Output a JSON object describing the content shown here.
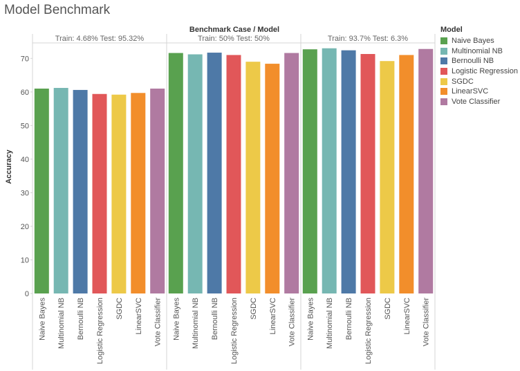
{
  "header": {
    "title": "Model Benchmark"
  },
  "chart_data": {
    "type": "bar",
    "title": "Model Benchmark",
    "column_header": "Benchmark Case / Model",
    "ylabel": "Accuracy",
    "ylim": [
      0,
      74.6
    ],
    "yticks": [
      0,
      10,
      20,
      30,
      40,
      50,
      60,
      70
    ],
    "grid": false,
    "legend_title": "Model",
    "legend_position": "right",
    "categories": [
      "Naive Bayes",
      "Multinomial NB",
      "Bernoulli NB",
      "Logistic Regression",
      "SGDC",
      "LinearSVC",
      "Vote Classifier"
    ],
    "colors": [
      "#59a14f",
      "#76b7b2",
      "#4e79a7",
      "#e15759",
      "#edc948",
      "#f28e2b",
      "#b07aa1"
    ],
    "panels": [
      {
        "name": "Train: 4.68% Test: 95.32%",
        "values": [
          61.0,
          61.2,
          60.6,
          59.4,
          59.2,
          59.7,
          61.0
        ]
      },
      {
        "name": "Train: 50% Test: 50%",
        "values": [
          71.6,
          71.2,
          71.7,
          71.0,
          69.0,
          68.4,
          71.6
        ]
      },
      {
        "name": "Train: 93.7% Test: 6.3%",
        "values": [
          72.7,
          73.0,
          72.4,
          71.3,
          69.2,
          71.0,
          72.8
        ]
      }
    ]
  }
}
